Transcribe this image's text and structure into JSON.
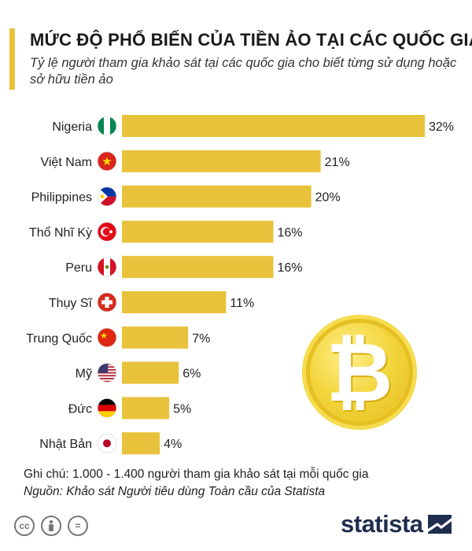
{
  "header": {
    "title": "MỨC ĐỘ PHỔ BIẾN CỦA TIỀN ẢO TẠI CÁC QUỐC GIA",
    "subtitle": "Tỷ lệ người tham gia khảo sát tại các quốc gia cho biết từng sử dụng hoặc sở hữu tiền ảo"
  },
  "chart_data": {
    "type": "bar",
    "orientation": "horizontal",
    "categories": [
      "Nigeria",
      "Việt Nam",
      "Philippines",
      "Thổ Nhĩ Kỳ",
      "Peru",
      "Thụy Sĩ",
      "Trung Quốc",
      "Mỹ",
      "Đức",
      "Nhật Bản"
    ],
    "values": [
      32,
      21,
      20,
      16,
      16,
      11,
      7,
      6,
      5,
      4
    ],
    "value_labels": [
      "32%",
      "21%",
      "20%",
      "16%",
      "16%",
      "11%",
      "7%",
      "6%",
      "5%",
      "4%"
    ],
    "flags": [
      "flag-nigeria-icon",
      "flag-vietnam-icon",
      "flag-philippines-icon",
      "flag-turkey-icon",
      "flag-peru-icon",
      "flag-switzerland-icon",
      "flag-china-icon",
      "flag-usa-icon",
      "flag-germany-icon",
      "flag-japan-icon"
    ],
    "xlim": [
      0,
      32
    ],
    "grid": false,
    "bar_color": "#e8c23a"
  },
  "decoration": {
    "coin_icon": "bitcoin-icon",
    "coin_symbol": "₿"
  },
  "footer": {
    "note": "Ghi chú: 1.000 - 1.400 người tham gia khảo sát tại mỗi quốc gia",
    "source": "Nguồn: Khảo sát Người tiêu dùng Toàn cầu của Statista",
    "license_icons": [
      "creative-commons-icon",
      "attribution-icon",
      "no-derivatives-icon"
    ],
    "cc_text": "cc",
    "nd_text": "=",
    "brand": "statista"
  }
}
